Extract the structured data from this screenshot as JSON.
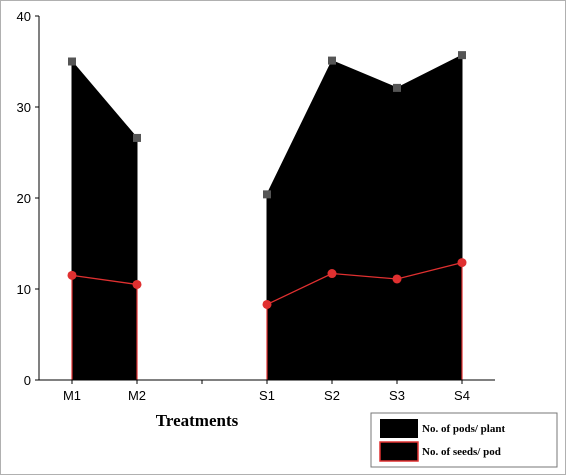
{
  "chart_data": {
    "type": "area",
    "xlabel": "Treatments",
    "ylabel": "",
    "ylim": [
      0,
      40
    ],
    "yticks": [
      0,
      10,
      20,
      30,
      40
    ],
    "categories": [
      "M1",
      "M2",
      "",
      "S1",
      "S2",
      "S3",
      "S4"
    ],
    "groups": [
      [
        "M1",
        "M2"
      ],
      [
        "S1",
        "S2",
        "S3",
        "S4"
      ]
    ],
    "series": [
      {
        "name": "No. of pods/ plant",
        "style": "filled-area",
        "color": "#000000",
        "marker_color": "#555555",
        "values": {
          "M1": 35.0,
          "M2": 26.6,
          "S1": 20.4,
          "S2": 35.1,
          "S3": 32.1,
          "S4": 35.7
        }
      },
      {
        "name": "No. of seeds/ pod",
        "style": "line",
        "color": "#e03030",
        "values": {
          "M1": 11.5,
          "M2": 10.5,
          "S1": 8.3,
          "S2": 11.7,
          "S3": 11.1,
          "S4": 12.9
        }
      }
    ],
    "grid": false,
    "legend_position": "bottom-right"
  }
}
